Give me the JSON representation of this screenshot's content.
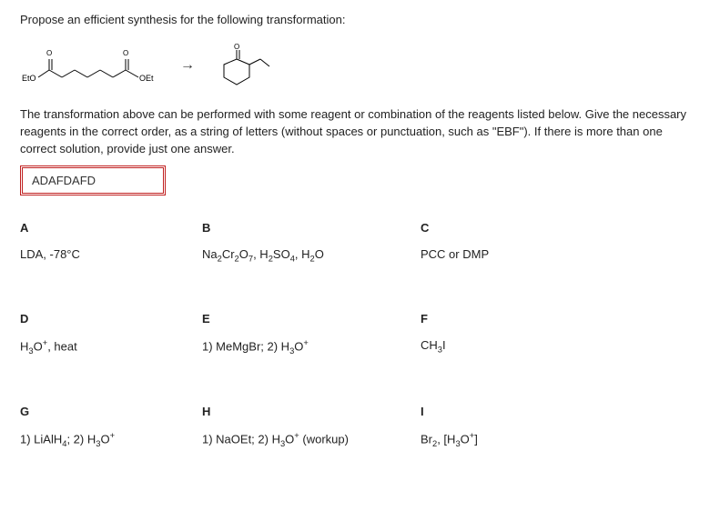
{
  "prompt": "Propose an efficient synthesis for the following transformation:",
  "starting_material": {
    "left_label": "EtO",
    "right_label": "OEt"
  },
  "arrow_glyph": "→",
  "instructions": "The transformation above can be performed with some reagent or combination of the reagents listed below. Give the necessary reagents in the correct order, as a string of letters (without spaces or punctuation, such as \"EBF\"). If there is more than one correct solution, provide just one answer.",
  "answer_input": {
    "value": "ADAFDAFD"
  },
  "reagents": {
    "A": {
      "letter": "A",
      "html": "LDA, -78°C"
    },
    "B": {
      "letter": "B",
      "html": "Na<sub>2</sub>Cr<sub>2</sub>O<sub>7</sub>, H<sub>2</sub>SO<sub>4</sub>, H<sub>2</sub>O"
    },
    "C": {
      "letter": "C",
      "html": "PCC or DMP"
    },
    "D": {
      "letter": "D",
      "html": "H<sub>3</sub>O<sup>+</sup>, heat"
    },
    "E": {
      "letter": "E",
      "html": "1) MeMgBr; 2) H<sub>3</sub>O<sup>+</sup>"
    },
    "F": {
      "letter": "F",
      "html": "CH<sub>3</sub>I"
    },
    "G": {
      "letter": "G",
      "html": "1) LiAlH<sub>4</sub>; 2) H<sub>3</sub>O<sup>+</sup>"
    },
    "H": {
      "letter": "H",
      "html": "1) NaOEt; 2) H<sub>3</sub>O<sup>+</sup> (workup)"
    },
    "I": {
      "letter": "I",
      "html": "Br<sub>2</sub>, [H<sub>3</sub>O<sup>+</sup>]"
    }
  },
  "colors": {
    "text": "#333333",
    "input_border": "#c02020",
    "bg": "#ffffff"
  }
}
